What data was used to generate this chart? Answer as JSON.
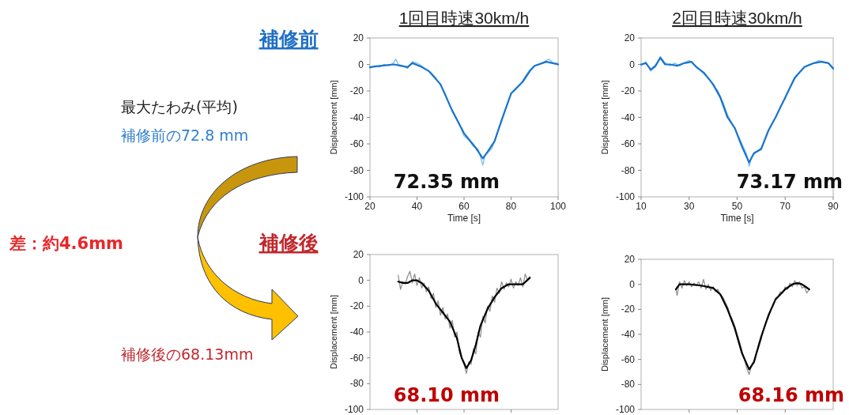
{
  "chart_data": [
    {
      "type": "line",
      "title": "1回目時速30km/h",
      "xlabel": "Time [s]",
      "ylabel": "Displacement [mm]",
      "xlim": [
        20,
        100
      ],
      "ylim": [
        -100,
        20
      ],
      "xticks": [
        20,
        40,
        60,
        80,
        100
      ],
      "yticks": [
        -100,
        -80,
        -60,
        -40,
        -20,
        0,
        20
      ],
      "annotations": [
        "72.35 mm"
      ],
      "series": [
        {
          "color": "#74b6ec",
          "x": [
            20,
            22,
            24,
            26,
            28,
            30,
            31,
            32,
            34,
            36,
            38,
            40,
            42,
            44,
            46,
            48,
            50,
            52,
            54,
            56,
            58,
            60,
            62,
            64,
            66,
            67,
            68,
            69,
            70,
            72,
            74,
            76,
            78,
            80,
            82,
            84,
            86,
            88,
            90,
            92,
            94,
            96,
            98,
            100
          ],
          "values": [
            -3,
            -1,
            -2,
            0,
            -1,
            1,
            4,
            0,
            -1,
            -3,
            2,
            1,
            -1,
            -4,
            -6,
            -10,
            -16,
            -22,
            -31,
            -38,
            -45,
            -54,
            -57,
            -62,
            -64,
            -70,
            -76,
            -68,
            -67,
            -63,
            -52,
            -43,
            -32,
            -22,
            -19,
            -15,
            -9,
            -4,
            -1,
            0,
            2,
            4,
            1,
            1
          ]
        },
        {
          "color": "#1874cd",
          "x": [
            20,
            25,
            30,
            33,
            36,
            38,
            42,
            45,
            50,
            55,
            60,
            65,
            68,
            70,
            73,
            76,
            80,
            85,
            88,
            90,
            95,
            100
          ],
          "values": [
            -2,
            -1,
            0,
            -1,
            -2,
            1,
            -2,
            -5,
            -15,
            -35,
            -52,
            -63,
            -71,
            -66,
            -58,
            -42,
            -22,
            -13,
            -5,
            -1,
            2,
            0
          ]
        }
      ]
    },
    {
      "type": "line",
      "title": "2回目時速30km/h",
      "xlabel": "Time [s]",
      "ylabel": "Displacement [mm]",
      "xlim": [
        10,
        90
      ],
      "ylim": [
        -100,
        20
      ],
      "xticks": [
        10,
        30,
        50,
        70,
        90
      ],
      "yticks": [
        -100,
        -80,
        -60,
        -40,
        -20,
        0,
        20
      ],
      "annotations": [
        "73.17 mm"
      ],
      "series": [
        {
          "color": "#74b6ec",
          "x": [
            10,
            12,
            14,
            16,
            18,
            20,
            22,
            24,
            26,
            28,
            30,
            32,
            34,
            36,
            38,
            40,
            42,
            44,
            46,
            48,
            50,
            52,
            54,
            55,
            56,
            58,
            60,
            62,
            64,
            66,
            68,
            70,
            72,
            74,
            76,
            78,
            80,
            82,
            84,
            86,
            88,
            90
          ],
          "values": [
            -1,
            2,
            -5,
            -2,
            6,
            1,
            -1,
            1,
            -1,
            1,
            3,
            0,
            -3,
            -7,
            -10,
            -16,
            -20,
            -28,
            -38,
            -45,
            -52,
            -60,
            -68,
            -77,
            -70,
            -66,
            -63,
            -55,
            -46,
            -40,
            -32,
            -26,
            -18,
            -11,
            -6,
            -2,
            0,
            1,
            3,
            2,
            1,
            -4
          ]
        },
        {
          "color": "#1874cd",
          "x": [
            10,
            12,
            14,
            16,
            18,
            20,
            22,
            25,
            28,
            31,
            33,
            36,
            40,
            43,
            46,
            49,
            52,
            55,
            57,
            60,
            63,
            66,
            70,
            74,
            78,
            82,
            85,
            88,
            90
          ],
          "values": [
            0,
            1,
            -4,
            -1,
            5,
            0,
            0,
            -1,
            1,
            2,
            -2,
            -6,
            -15,
            -25,
            -40,
            -48,
            -62,
            -74,
            -67,
            -64,
            -50,
            -40,
            -25,
            -10,
            -2,
            1,
            2,
            1,
            -3
          ]
        }
      ]
    },
    {
      "type": "line",
      "ylabel": "Displacement [mm]",
      "xlim": [
        20,
        100
      ],
      "ylim": [
        -100,
        20
      ],
      "xticks": [
        {
          "value": 40,
          "label": null
        },
        {
          "value": 60,
          "label": null
        },
        {
          "value": 80,
          "label": null
        }
      ],
      "yticks": [
        -100,
        -80,
        -60,
        -40,
        -20,
        0,
        20
      ],
      "tick_labels": "y",
      "annotations": [
        "68.10 mm"
      ],
      "series": [
        {
          "color": "#8c8c8c",
          "x": [
            32,
            33,
            34,
            35,
            36,
            37,
            38,
            39,
            40,
            41,
            42,
            43,
            44,
            45,
            46,
            47,
            48,
            49,
            50,
            51,
            52,
            53,
            54,
            55,
            56,
            57,
            58,
            59,
            60,
            61,
            62,
            63,
            64,
            65,
            66,
            67,
            68,
            69,
            70,
            71,
            72,
            73,
            74,
            75,
            76,
            77,
            78,
            79,
            80,
            81,
            82,
            83,
            84,
            85,
            86,
            87,
            88
          ],
          "values": [
            4,
            -7,
            -1,
            -3,
            3,
            7,
            -2,
            5,
            -4,
            2,
            -6,
            -2,
            -9,
            -5,
            -14,
            -10,
            -21,
            -16,
            -27,
            -21,
            -30,
            -26,
            -37,
            -31,
            -44,
            -40,
            -56,
            -60,
            -65,
            -72,
            -63,
            -65,
            -53,
            -57,
            -40,
            -44,
            -28,
            -33,
            -20,
            -24,
            -12,
            -17,
            -6,
            -10,
            -1,
            -7,
            -2,
            -5,
            1,
            -6,
            -1,
            -4,
            2,
            -5,
            5,
            0,
            3
          ]
        },
        {
          "color": "#000000",
          "x": [
            32,
            34,
            36,
            38,
            40,
            42,
            45,
            48,
            51,
            54,
            57,
            59,
            61,
            63,
            65,
            67,
            70,
            73,
            76,
            79,
            82,
            85,
            88
          ],
          "values": [
            -1,
            -2,
            -2,
            0,
            0,
            -2,
            -8,
            -18,
            -25,
            -32,
            -45,
            -60,
            -68,
            -62,
            -50,
            -35,
            -22,
            -13,
            -6,
            -3,
            -3,
            -3,
            2
          ]
        }
      ]
    },
    {
      "type": "line",
      "ylabel": "Displacement [mm]",
      "xlim": [
        10,
        90
      ],
      "ylim": [
        -100,
        20
      ],
      "xticks": [
        {
          "value": 30,
          "label": null
        },
        {
          "value": 50,
          "label": null
        },
        {
          "value": 70,
          "label": null
        }
      ],
      "yticks": [
        -100,
        -80,
        -60,
        -40,
        -20,
        0,
        20
      ],
      "tick_labels": "y",
      "annotations": [
        "68.16 mm"
      ],
      "series": [
        {
          "color": "#8c8c8c",
          "x": [
            24.5,
            25,
            26,
            27,
            28,
            29,
            30,
            31,
            32,
            33,
            34,
            35,
            36,
            37,
            38,
            39,
            40,
            41,
            42,
            43,
            44,
            45,
            46,
            47,
            48,
            49,
            50,
            51,
            52,
            53,
            54,
            55,
            56,
            57,
            58,
            59,
            60,
            61,
            62,
            63,
            64,
            65,
            66,
            67,
            68,
            69,
            70,
            71,
            72,
            73,
            74,
            75,
            76,
            77,
            78,
            79,
            80
          ],
          "values": [
            -4,
            -9,
            2,
            -3,
            3,
            -1,
            2,
            -2,
            1,
            -1,
            2,
            -3,
            4,
            -4,
            0,
            -5,
            -2,
            -6,
            -4,
            -9,
            -10,
            -14,
            -18,
            -24,
            -28,
            -33,
            -40,
            -46,
            -53,
            -60,
            -67,
            -72,
            -65,
            -63,
            -55,
            -50,
            -44,
            -36,
            -30,
            -27,
            -20,
            -17,
            -11,
            -10,
            -6,
            -7,
            -2,
            -4,
            1,
            -2,
            3,
            -1,
            2,
            -3,
            -2,
            -7,
            -4
          ]
        },
        {
          "color": "#000000",
          "x": [
            24.5,
            26,
            30,
            35,
            40,
            43,
            46,
            49,
            52,
            55,
            57,
            60,
            63,
            66,
            70,
            73,
            75,
            77,
            80
          ],
          "values": [
            -4,
            0,
            0,
            -1,
            -3,
            -8,
            -20,
            -35,
            -55,
            -68,
            -62,
            -42,
            -25,
            -12,
            -4,
            0,
            1,
            0,
            -4
          ]
        }
      ]
    },
    {
      "type": "other",
      "annotations": [
        "補修前",
        "補修後",
        "最大たわみ(平均)",
        "補修前の72.8 mm",
        "差：約4.6mm",
        "補修後の68.13mm"
      ]
    }
  ]
}
